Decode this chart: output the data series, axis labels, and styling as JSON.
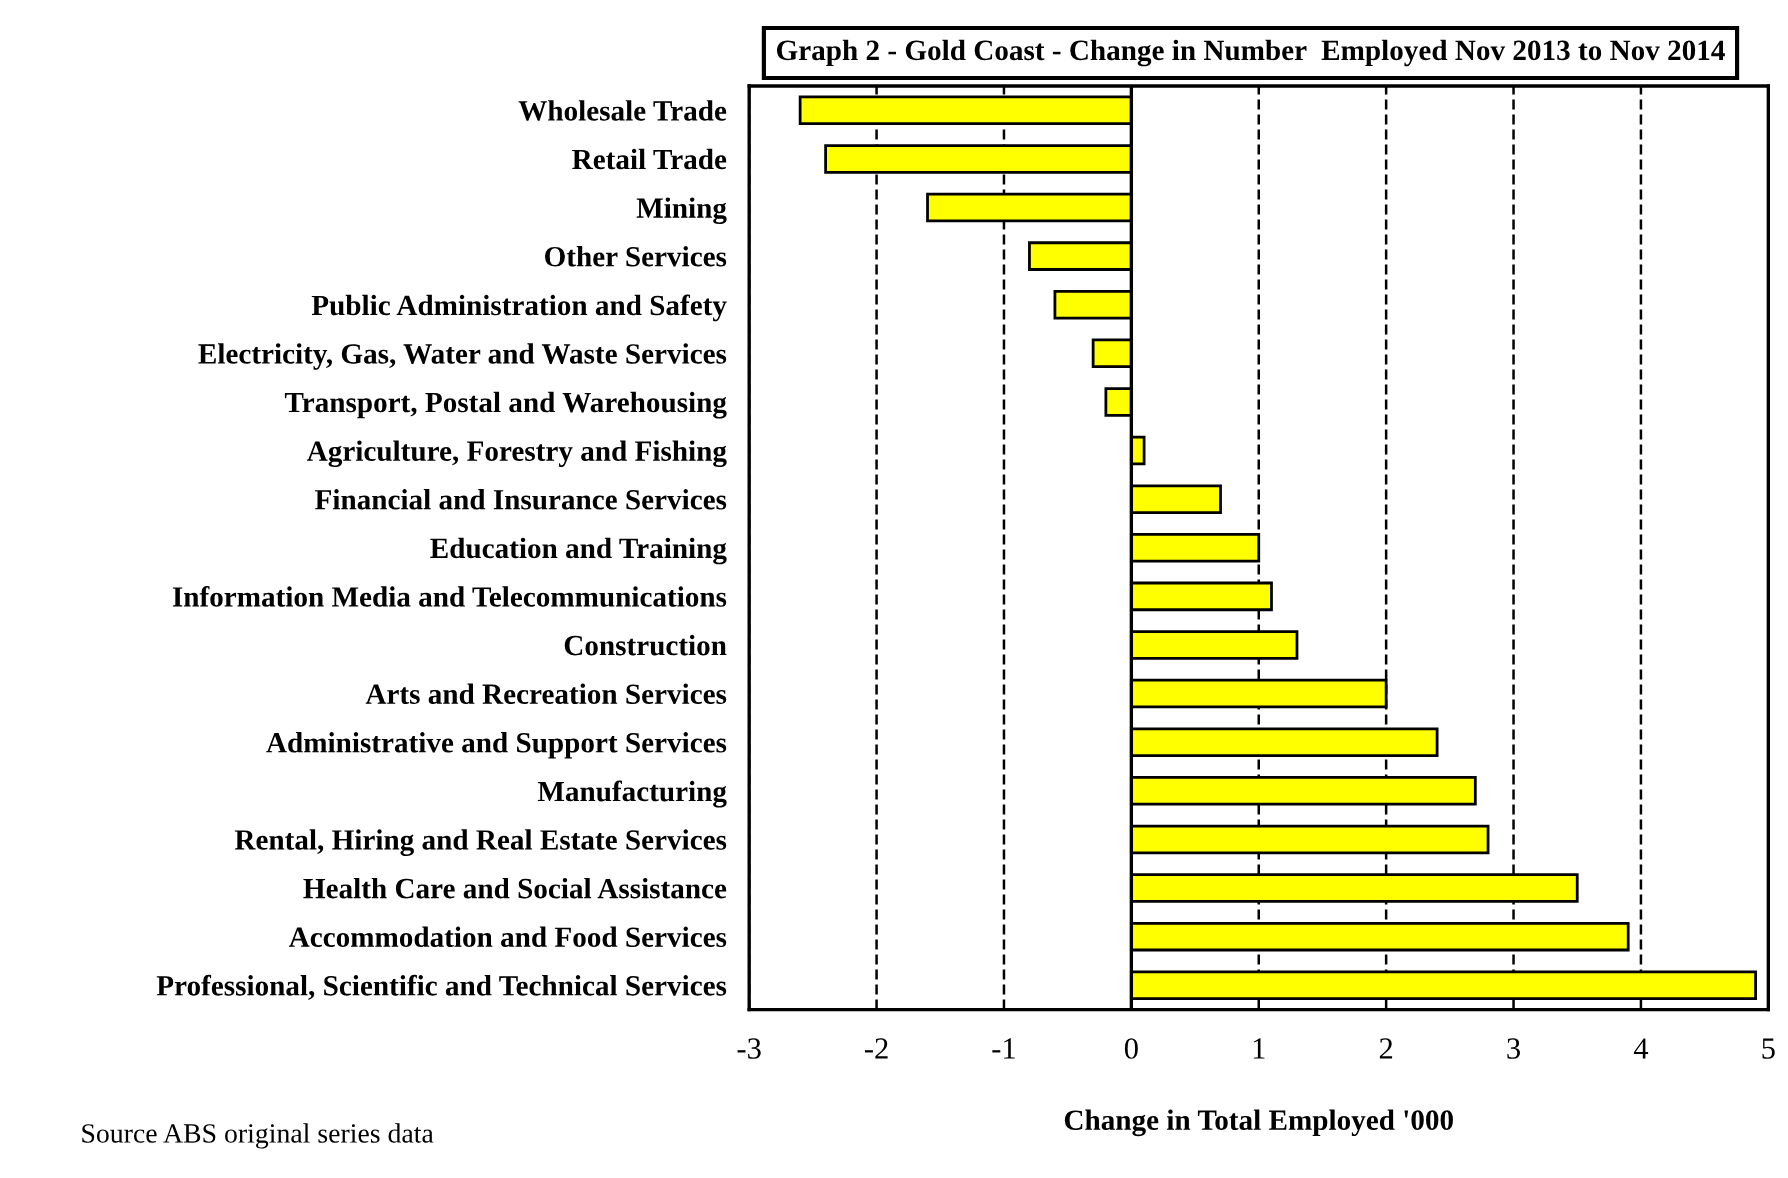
{
  "chart_data": {
    "type": "bar",
    "orientation": "horizontal",
    "title": "Graph 2 - Gold Coast - Change in Number  Employed Nov 2013 to Nov 2014",
    "xlabel": "Change in Total Employed '000",
    "categories": [
      "Wholesale Trade",
      "Retail Trade",
      "Mining",
      "Other Services",
      "Public Administration and Safety",
      "Electricity, Gas, Water and Waste Services",
      "Transport, Postal and Warehousing",
      "Agriculture, Forestry and Fishing",
      "Financial and Insurance Services",
      "Education and Training",
      "Information Media and Telecommunications",
      "Construction",
      "Arts and Recreation Services",
      "Administrative and Support Services",
      "Manufacturing",
      "Rental, Hiring and Real Estate Services",
      "Health Care and Social Assistance",
      "Accommodation and Food Services",
      "Professional, Scientific and Technical Services"
    ],
    "values": [
      -2.6,
      -2.4,
      -1.6,
      -0.8,
      -0.6,
      -0.3,
      -0.2,
      0.1,
      0.7,
      1.0,
      1.1,
      1.3,
      2.0,
      2.4,
      2.7,
      2.8,
      3.5,
      3.9,
      4.9
    ],
    "color": "#ffff00",
    "xlim": [
      -3,
      5
    ],
    "xticks": [
      -3,
      -2,
      -1,
      0,
      1,
      2,
      3,
      4,
      5
    ],
    "grid": "x",
    "line_style": "dashed",
    "annotations": [
      "Source ABS original series data"
    ]
  }
}
